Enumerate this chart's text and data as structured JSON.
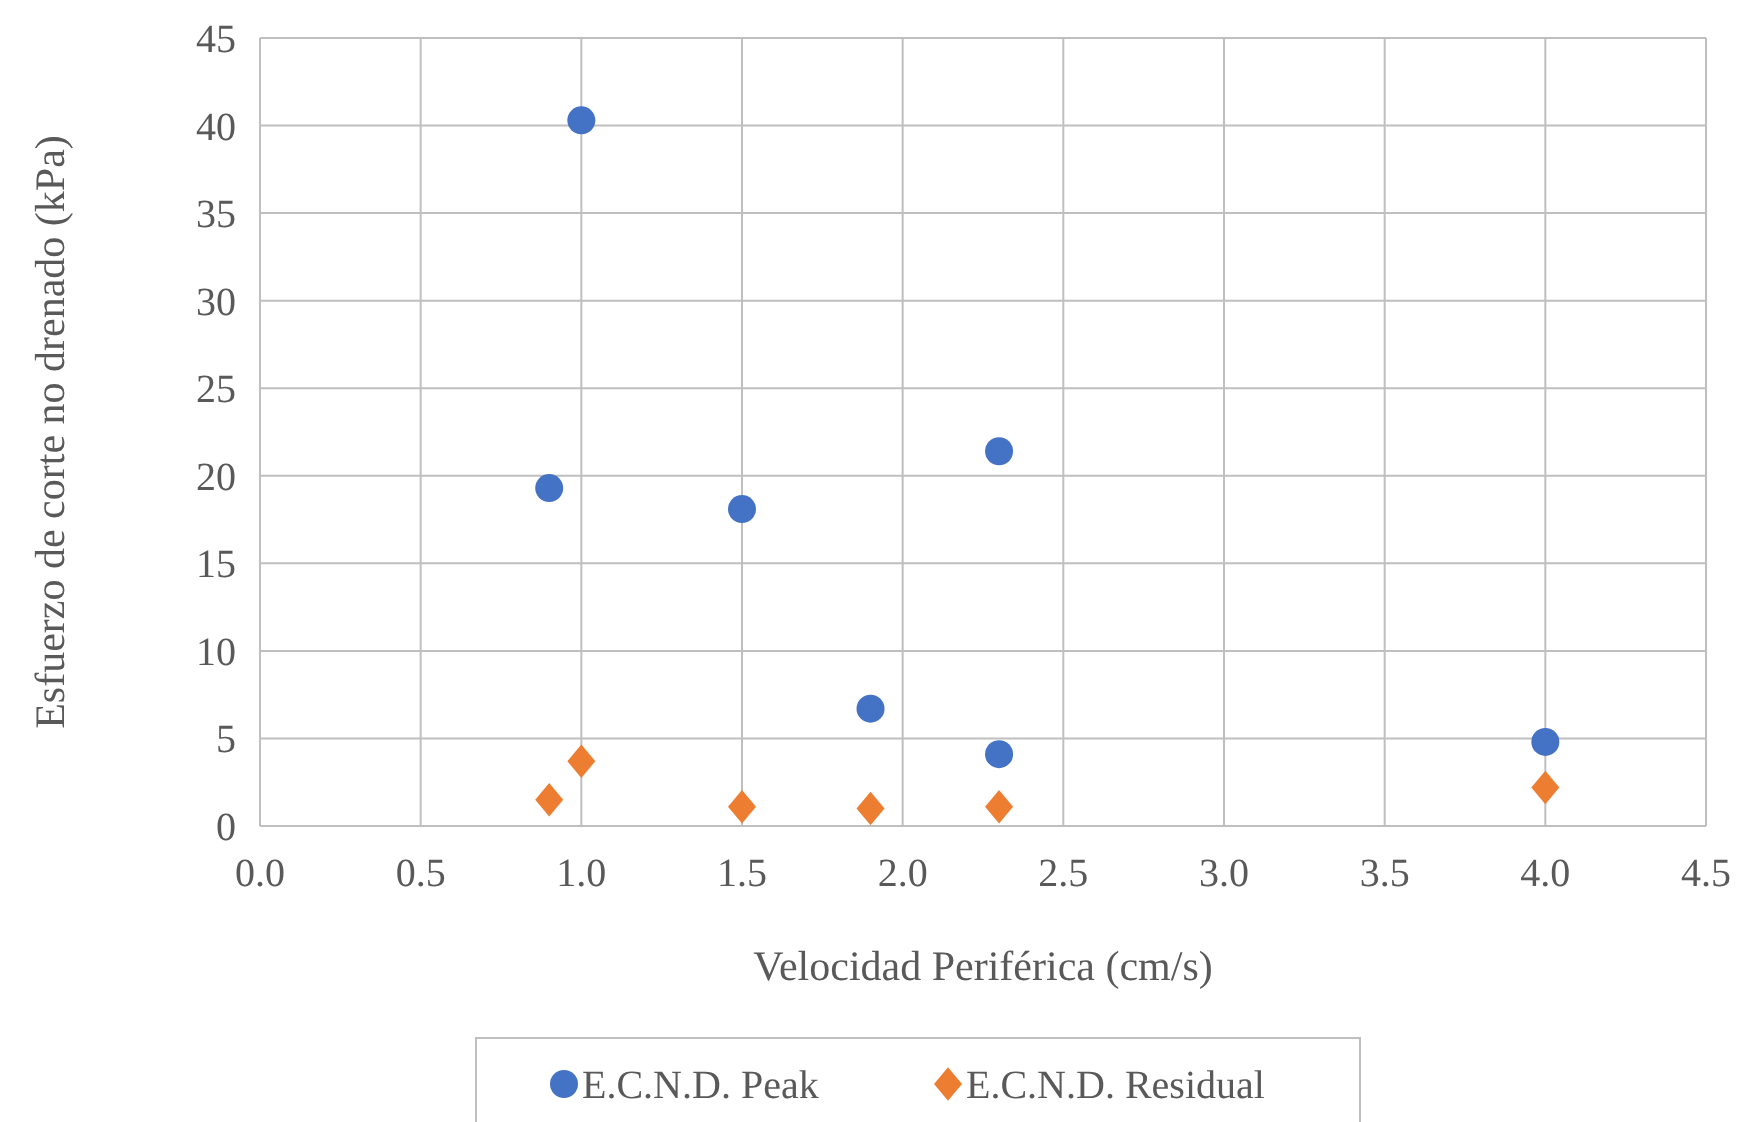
{
  "chart_data": {
    "type": "scatter",
    "xlabel": "Velocidad Periférica   (cm/s)",
    "ylabel": "Esfuerzo de corte no drenado (kPa)",
    "xlim": [
      0,
      4.5
    ],
    "xticks": [
      {
        "value": 0,
        "label": "0.0"
      },
      {
        "value": 0.5,
        "label": "0.5"
      },
      {
        "value": 1,
        "label": "1.0"
      },
      {
        "value": 1.5,
        "label": "1.5"
      },
      {
        "value": 2,
        "label": "2.0"
      },
      {
        "value": 2.5,
        "label": "2.5"
      },
      {
        "value": 3,
        "label": "3.0"
      },
      {
        "value": 3.5,
        "label": "3.5"
      },
      {
        "value": 4,
        "label": "4.0"
      },
      {
        "value": 4.5,
        "label": "4.5"
      }
    ],
    "ylim": [
      0,
      45
    ],
    "yticks": [
      0,
      5,
      10,
      15,
      20,
      25,
      30,
      35,
      40,
      45
    ],
    "grid": true,
    "legend": "bottom",
    "series": [
      {
        "name": "E.C.N.D. Peak",
        "color": "#4472c4",
        "marker": "circle",
        "x": [
          0.9,
          1.0,
          1.5,
          1.9,
          2.3,
          2.3,
          4.0
        ],
        "values": [
          19.3,
          40.3,
          18.1,
          6.7,
          21.4,
          4.1,
          4.8
        ]
      },
      {
        "name": "E.C.N.D. Residual",
        "color": "#ed7d31",
        "marker": "diamond",
        "x": [
          0.9,
          1.0,
          1.5,
          1.9,
          2.3,
          4.0
        ],
        "values": [
          1.5,
          3.7,
          1.1,
          1.0,
          1.1,
          2.2
        ]
      }
    ]
  }
}
